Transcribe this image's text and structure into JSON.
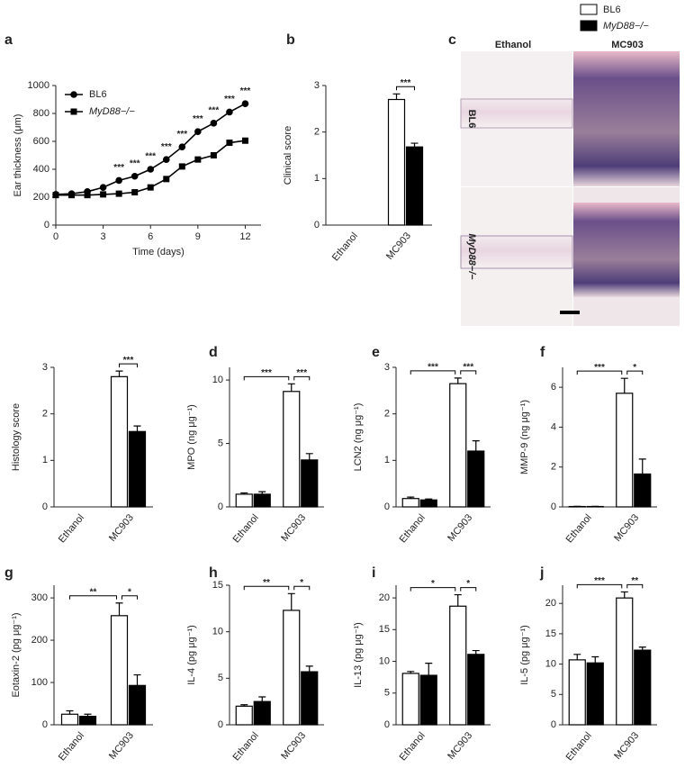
{
  "legend": {
    "entries": [
      {
        "name": "BL6",
        "color": "#ffffff"
      },
      {
        "name": "MyD88−/−",
        "color": "#000000"
      }
    ]
  },
  "panel_c": {
    "label": "c",
    "columns": [
      "Ethanol",
      "MC903"
    ],
    "rows": [
      "BL6",
      "MyD88−/−"
    ]
  },
  "chart_data": [
    {
      "type": "line",
      "label": "a",
      "ylabel": "Ear thickness (μm)",
      "xlabel": "Time (days)",
      "x": [
        0,
        1,
        2,
        3,
        4,
        5,
        6,
        7,
        8,
        9,
        10,
        11,
        12
      ],
      "xlim": [
        0,
        13
      ],
      "xticks": [
        0,
        3,
        6,
        9,
        12
      ],
      "ylim": [
        0,
        1000
      ],
      "yticks": [
        0,
        200,
        400,
        600,
        800,
        1000
      ],
      "series": [
        {
          "name": "BL6",
          "color": "#000000",
          "values": [
            220,
            225,
            240,
            270,
            320,
            350,
            400,
            470,
            560,
            670,
            730,
            810,
            870
          ]
        },
        {
          "name": "MyD88−/−",
          "color": "#000000",
          "values": [
            215,
            215,
            215,
            220,
            225,
            235,
            270,
            330,
            420,
            470,
            500,
            590,
            605
          ]
        }
      ],
      "annotations": [
        {
          "x": 4,
          "text": "***"
        },
        {
          "x": 5,
          "text": "***"
        },
        {
          "x": 6,
          "text": "***"
        },
        {
          "x": 7,
          "text": "***"
        },
        {
          "x": 8,
          "text": "***"
        },
        {
          "x": 9,
          "text": "***"
        },
        {
          "x": 10,
          "text": "***"
        },
        {
          "x": 11,
          "text": "***"
        },
        {
          "x": 12,
          "text": "***"
        }
      ]
    },
    {
      "type": "bar",
      "label": "b",
      "ylabel": "Clinical score",
      "categories": [
        "Ethanol",
        "MC903"
      ],
      "ylim": [
        0,
        3
      ],
      "yticks": [
        0,
        1,
        2,
        3
      ],
      "series": [
        {
          "values": [
            0,
            2.7
          ],
          "errors": [
            null,
            0.12
          ]
        },
        {
          "values": [
            0,
            1.68
          ],
          "errors": [
            null,
            0.08
          ]
        }
      ],
      "annotations": [
        "***"
      ]
    },
    {
      "type": "bar",
      "ylabel": "Histology score",
      "categories": [
        "Ethanol",
        "MC903"
      ],
      "ylim": [
        0,
        3
      ],
      "yticks": [
        0,
        1,
        2,
        3
      ],
      "series": [
        {
          "values": [
            0,
            2.8
          ],
          "errors": [
            null,
            0.12
          ]
        },
        {
          "values": [
            0,
            1.62
          ],
          "errors": [
            null,
            0.12
          ]
        }
      ],
      "annotations": [
        "***"
      ]
    },
    {
      "type": "bar",
      "label": "d",
      "ylabel": "MPO (ng μg⁻¹)",
      "categories": [
        "Ethanol",
        "MC903"
      ],
      "ylim": [
        0,
        11
      ],
      "yticks": [
        0,
        5,
        10
      ],
      "series": [
        {
          "values": [
            1.0,
            9.1
          ],
          "errors": [
            0.1,
            0.6
          ]
        },
        {
          "values": [
            1.0,
            3.7
          ],
          "errors": [
            0.2,
            0.5
          ]
        }
      ],
      "annotations": [
        "***",
        "***"
      ]
    },
    {
      "type": "bar",
      "label": "e",
      "ylabel": "LCN2 (ng μg⁻¹)",
      "categories": [
        "Ethanol",
        "MC903"
      ],
      "ylim": [
        0,
        3
      ],
      "yticks": [
        0,
        1,
        2,
        3
      ],
      "series": [
        {
          "values": [
            0.18,
            2.65
          ],
          "errors": [
            0.03,
            0.12
          ]
        },
        {
          "values": [
            0.15,
            1.2
          ],
          "errors": [
            0.02,
            0.22
          ]
        }
      ],
      "annotations": [
        "***",
        "***"
      ]
    },
    {
      "type": "bar",
      "label": "f",
      "ylabel": "MMP-9 (ng μg⁻¹)",
      "categories": [
        "Ethanol",
        "MC903"
      ],
      "ylim": [
        0,
        7
      ],
      "yticks": [
        0,
        2,
        4,
        6
      ],
      "series": [
        {
          "values": [
            0.02,
            5.7
          ],
          "errors": [
            0.01,
            0.75
          ]
        },
        {
          "values": [
            0.02,
            1.65
          ],
          "errors": [
            0.01,
            0.75
          ]
        }
      ],
      "annotations": [
        "***",
        "*"
      ]
    },
    {
      "type": "bar",
      "label": "g",
      "ylabel": "Eotaxin-2 (pg μg⁻¹)",
      "categories": [
        "Ethanol",
        "MC903"
      ],
      "ylim": [
        0,
        330
      ],
      "yticks": [
        0,
        100,
        200,
        300
      ],
      "series": [
        {
          "values": [
            25,
            258
          ],
          "errors": [
            8,
            30
          ]
        },
        {
          "values": [
            20,
            93
          ],
          "errors": [
            5,
            25
          ]
        }
      ],
      "annotations": [
        "**",
        "*"
      ]
    },
    {
      "type": "bar",
      "label": "h",
      "ylabel": "IL-4 (pg μg⁻¹)",
      "categories": [
        "Ethanol",
        "MC903"
      ],
      "ylim": [
        0,
        15
      ],
      "yticks": [
        0,
        5,
        10,
        15
      ],
      "series": [
        {
          "values": [
            2.0,
            12.3
          ],
          "errors": [
            0.15,
            1.8
          ]
        },
        {
          "values": [
            2.5,
            5.7
          ],
          "errors": [
            0.5,
            0.6
          ]
        }
      ],
      "annotations": [
        "**",
        "*"
      ]
    },
    {
      "type": "bar",
      "label": "i",
      "ylabel": "IL-13 (pg μg⁻¹)",
      "categories": [
        "Ethanol",
        "MC903"
      ],
      "ylim": [
        0,
        22
      ],
      "yticks": [
        0,
        5,
        10,
        15,
        20
      ],
      "series": [
        {
          "values": [
            8.1,
            18.7
          ],
          "errors": [
            0.3,
            1.8
          ]
        },
        {
          "values": [
            7.8,
            11.1
          ],
          "errors": [
            1.9,
            0.6
          ]
        }
      ],
      "annotations": [
        "*",
        "*"
      ]
    },
    {
      "type": "bar",
      "label": "j",
      "ylabel": "IL-5 (pg μg⁻¹)",
      "categories": [
        "Ethanol",
        "MC903"
      ],
      "ylim": [
        0,
        23
      ],
      "yticks": [
        0,
        5,
        10,
        15,
        20
      ],
      "series": [
        {
          "values": [
            10.7,
            20.9
          ],
          "errors": [
            0.9,
            1.0
          ]
        },
        {
          "values": [
            10.2,
            12.3
          ],
          "errors": [
            1.0,
            0.5
          ]
        }
      ],
      "annotations": [
        "***",
        "**"
      ]
    }
  ]
}
